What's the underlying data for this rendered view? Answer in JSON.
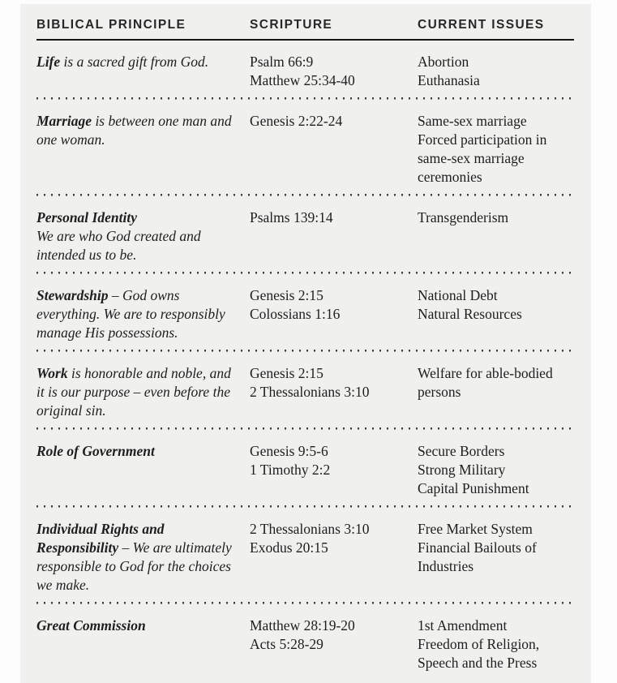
{
  "page": {
    "background_color": "#f0f0ee",
    "margin_color": "#fdfdfd",
    "text_color": "#1e1e1e",
    "header_rule_color": "#161616",
    "separator_dot_color": "#3b3b3b",
    "separator_style": "dotted"
  },
  "table": {
    "headers": [
      "BIBLICAL PRINCIPLE",
      "SCRIPTURE",
      "CURRENT ISSUES"
    ],
    "rows": [
      {
        "principle": {
          "term": "Life",
          "rest": " is a sacred gift from God.",
          "term_own_line": false
        },
        "scripture": [
          "Psalm 66:9",
          "Matthew 25:34-40"
        ],
        "issues": [
          "Abortion",
          "Euthanasia"
        ]
      },
      {
        "principle": {
          "term": "Marriage",
          "rest": " is between one man and one woman.",
          "term_own_line": false
        },
        "scripture": [
          "Genesis 2:22-24"
        ],
        "issues": [
          "Same-sex marriage",
          "Forced participation in same-sex marriage ceremonies"
        ]
      },
      {
        "principle": {
          "term": "Personal Identity",
          "rest": "We are who God created and intended us to be.",
          "term_own_line": true
        },
        "scripture": [
          "Psalms 139:14"
        ],
        "issues": [
          "Transgenderism"
        ]
      },
      {
        "principle": {
          "term": "Stewardship",
          "rest": " – God owns everything. We are to responsibly manage His possessions.",
          "term_own_line": false
        },
        "scripture": [
          "Genesis 2:15",
          "Colossians 1:16"
        ],
        "issues": [
          "National Debt",
          "Natural Resources"
        ]
      },
      {
        "principle": {
          "term": "Work",
          "rest": " is honorable and noble, and it is our purpose – even before the original sin.",
          "term_own_line": false
        },
        "scripture": [
          "Genesis 2:15",
          "2 Thessalonians 3:10"
        ],
        "issues": [
          "Welfare for able-bodied persons"
        ]
      },
      {
        "principle": {
          "term": "Role of Government",
          "rest": "",
          "term_own_line": false
        },
        "scripture": [
          "Genesis 9:5-6",
          "1 Timothy 2:2"
        ],
        "issues": [
          "Secure Borders",
          "Strong Military",
          "Capital Punishment"
        ]
      },
      {
        "principle": {
          "term": "Individual Rights and Responsibility",
          "rest": " – We are ultimately responsible to God for the choices we make.",
          "term_own_line": false
        },
        "scripture": [
          "2 Thessalonians 3:10",
          "Exodus 20:15"
        ],
        "issues": [
          "Free Market System",
          "Financial Bailouts of Industries"
        ]
      },
      {
        "principle": {
          "term": "Great Commission",
          "rest": "",
          "term_own_line": false
        },
        "scripture": [
          "Matthew 28:19-20",
          "Acts 5:28-29"
        ],
        "issues": [
          "1st Amendment",
          "Freedom of Religion, Speech and the Press"
        ]
      }
    ]
  }
}
